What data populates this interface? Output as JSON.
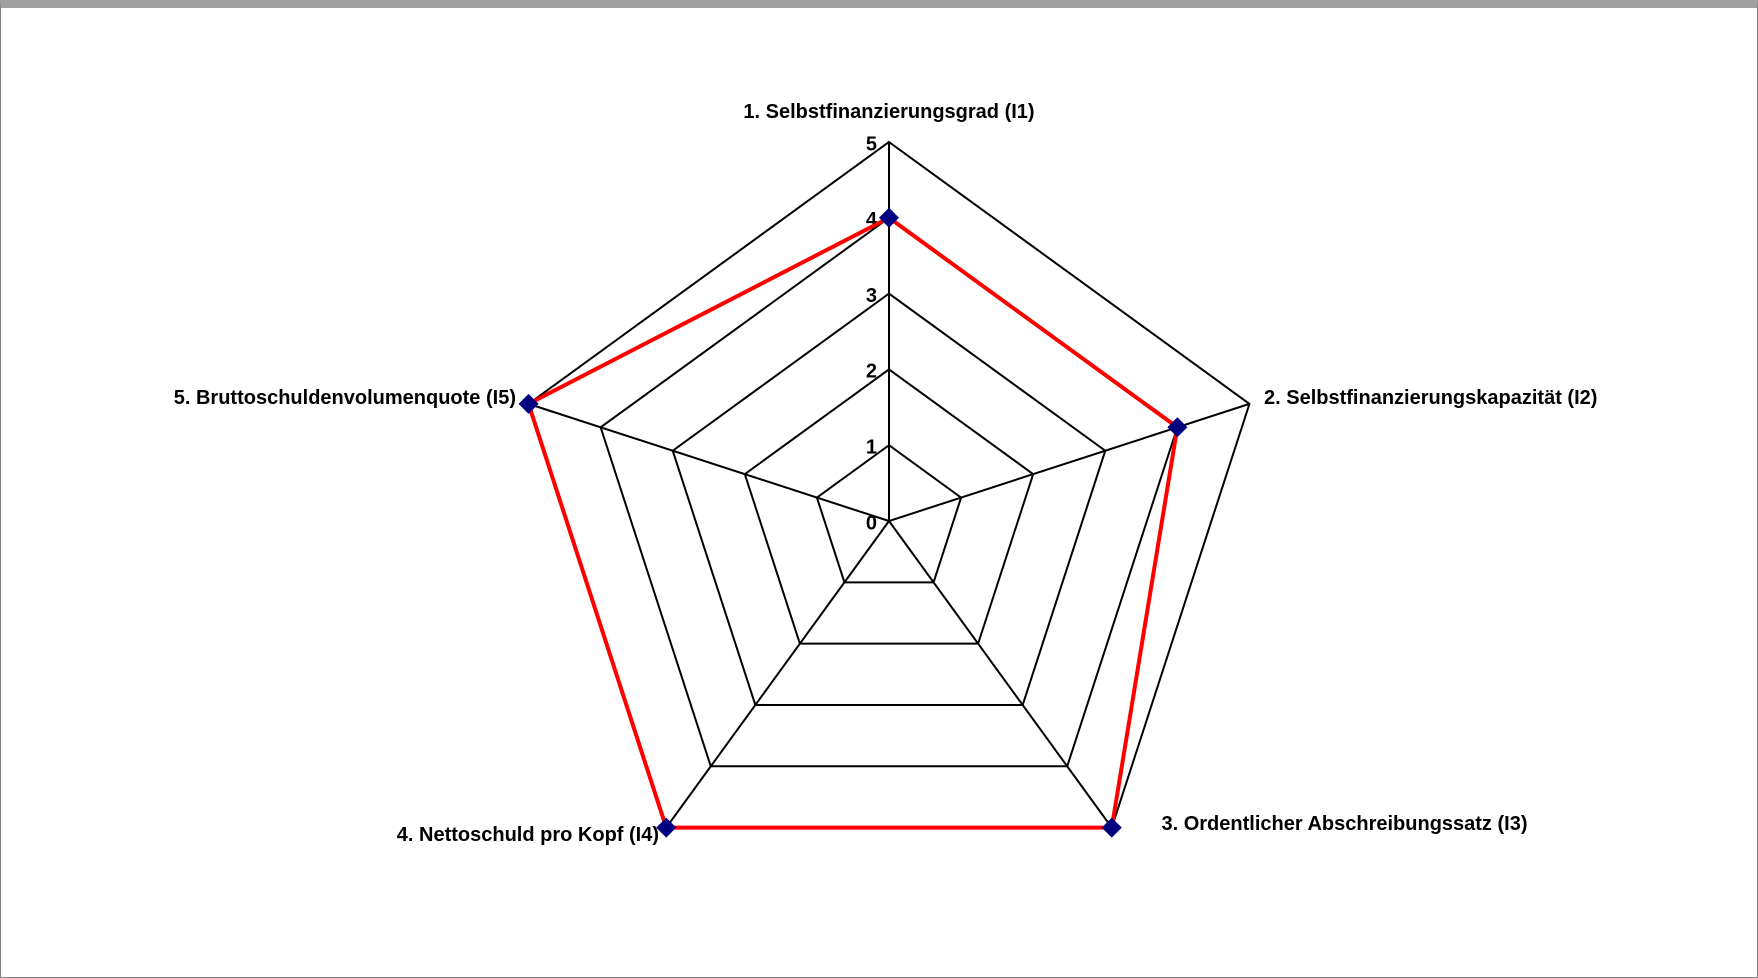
{
  "chart_data": {
    "type": "radar",
    "categories": [
      "1. Selbstfinanzierungsgrad (I1)",
      "2. Selbstfinanzierungskapazität (I2)",
      "3. Ordentlicher Abschreibungssatz (I3)",
      "4. Nettoschuld pro Kopf (I4)",
      "5. Bruttoschuldenvolumenquote (I5)"
    ],
    "values": [
      4,
      4,
      5,
      5,
      5
    ],
    "color": "#ff0000",
    "marker_color": "#000080",
    "rlim": [
      0,
      5
    ],
    "rticks": [
      0,
      1,
      2,
      3,
      4,
      5
    ],
    "grid": true
  }
}
